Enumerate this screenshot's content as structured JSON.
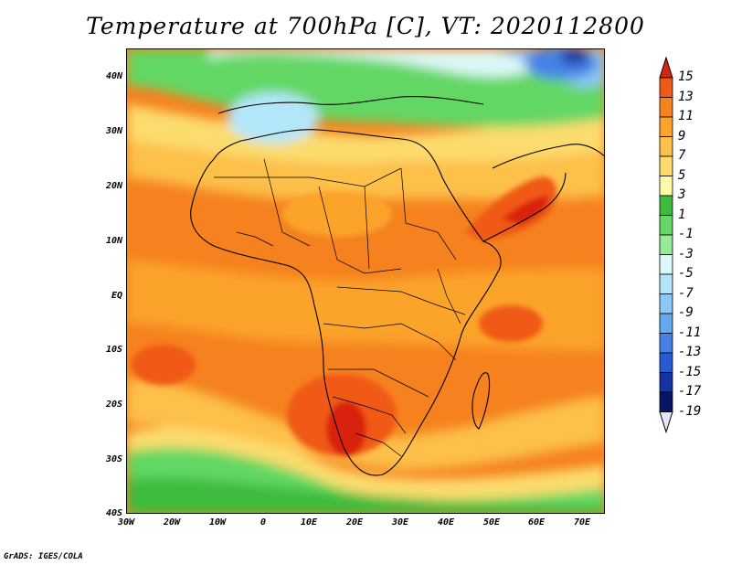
{
  "title": "Temperature at 700hPa [C], VT: 2020112800",
  "credit": "GrADS: IGES/COLA",
  "map": {
    "lat_labels": [
      "40N",
      "30N",
      "20N",
      "10N",
      "EQ",
      "10S",
      "20S",
      "30S",
      "40S"
    ],
    "lon_labels": [
      "30W",
      "20W",
      "10W",
      "0",
      "10E",
      "20E",
      "30E",
      "40E",
      "50E",
      "60E",
      "70E"
    ],
    "lat_range": [
      -40,
      45
    ],
    "lon_range": [
      -30,
      75
    ]
  },
  "colorbar": {
    "labels": [
      "15",
      "13",
      "11",
      "9",
      "7",
      "5",
      "3",
      "1",
      "-1",
      "-3",
      "-5",
      "-7",
      "-9",
      "-11",
      "-13",
      "-15",
      "-17",
      "-19"
    ],
    "colors": [
      "#d92410",
      "#f05a18",
      "#f5821e",
      "#fca32c",
      "#fdc04a",
      "#fcdc6e",
      "#fefaa8",
      "#3cbc3c",
      "#64d764",
      "#96eb96",
      "#dcf8f8",
      "#b4e6fa",
      "#8cc8f5",
      "#64aaf0",
      "#4682e6",
      "#285ad2",
      "#1432a0",
      "#0a1464",
      "#e6e6fa"
    ]
  }
}
